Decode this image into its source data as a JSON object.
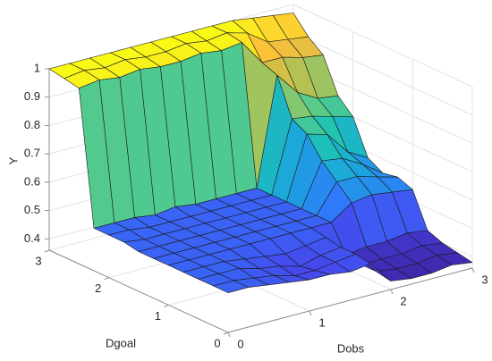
{
  "chart_data": {
    "type": "surface",
    "xlabel": "Dobs",
    "ylabel": "Dgoal",
    "zlabel": "Y",
    "x": [
      0,
      0.25,
      0.5,
      0.75,
      1,
      1.25,
      1.5,
      1.75,
      2,
      2.25,
      2.5,
      2.75,
      3
    ],
    "y": [
      0,
      0.25,
      0.5,
      0.75,
      1,
      1.25,
      1.5,
      1.75,
      2,
      2.25,
      2.5,
      2.75,
      3
    ],
    "z": [
      [
        0.5,
        0.5,
        0.49,
        0.48,
        0.47,
        0.47,
        0.46,
        0.47,
        0.39,
        0.38,
        0.38,
        0.39,
        0.38
      ],
      [
        0.5,
        0.5,
        0.49,
        0.48,
        0.46,
        0.46,
        0.47,
        0.48,
        0.4,
        0.39,
        0.39,
        0.4,
        0.39
      ],
      [
        0.5,
        0.5,
        0.5,
        0.48,
        0.47,
        0.45,
        0.47,
        0.48,
        0.4,
        0.4,
        0.4,
        0.41,
        0.4
      ],
      [
        0.5,
        0.5,
        0.5,
        0.49,
        0.48,
        0.47,
        0.48,
        0.49,
        0.41,
        0.42,
        0.42,
        0.43,
        0.42
      ],
      [
        0.5,
        0.5,
        0.5,
        0.5,
        0.5,
        0.5,
        0.5,
        0.5,
        0.5,
        0.55,
        0.56,
        0.55,
        0.54
      ],
      [
        0.5,
        0.5,
        0.5,
        0.5,
        0.5,
        0.5,
        0.5,
        0.5,
        0.5,
        0.6,
        0.6,
        0.58,
        0.56
      ],
      [
        0.5,
        0.5,
        0.5,
        0.5,
        0.5,
        0.5,
        0.5,
        0.5,
        0.5,
        0.65,
        0.64,
        0.6,
        0.55
      ],
      [
        0.51,
        0.5,
        0.5,
        0.5,
        0.5,
        0.5,
        0.5,
        0.5,
        0.5,
        0.72,
        0.7,
        0.62,
        0.58
      ],
      [
        0.51,
        0.51,
        0.5,
        0.5,
        0.5,
        0.5,
        0.5,
        0.5,
        0.5,
        0.75,
        0.74,
        0.72,
        0.7
      ],
      [
        0.51,
        0.51,
        0.51,
        0.5,
        0.51,
        0.5,
        0.5,
        0.5,
        0.5,
        0.88,
        0.8,
        0.76,
        0.75
      ],
      [
        0.98,
        0.99,
        0.98,
        0.99,
        0.98,
        0.98,
        0.99,
        0.98,
        0.99,
        0.9,
        0.9,
        0.88,
        0.87
      ],
      [
        0.99,
        1,
        0.99,
        1,
        0.99,
        0.99,
        1,
        0.99,
        1,
        0.98,
        0.93,
        0.92,
        0.91
      ],
      [
        1,
        1,
        1,
        1,
        1,
        1,
        1,
        1,
        1,
        1,
        0.99,
        0.98,
        0.97
      ]
    ],
    "xlim": [
      0,
      3
    ],
    "ylim": [
      0,
      3
    ],
    "zlim": [
      0.36,
      1
    ],
    "xticks": [
      0,
      1,
      2,
      3
    ],
    "yticks": [
      0,
      1,
      2,
      3
    ],
    "zticks": [
      0.4,
      0.5,
      0.6,
      0.7,
      0.8,
      0.9,
      1
    ],
    "grid": true,
    "edge_color": "#1a1a1a",
    "colormap": [
      "#3e26a8",
      "#4746eb",
      "#2f79fc",
      "#1ca6db",
      "#1ec3b3",
      "#64cc81",
      "#c1bf4b",
      "#fcbf3b",
      "#f9fb15"
    ]
  }
}
